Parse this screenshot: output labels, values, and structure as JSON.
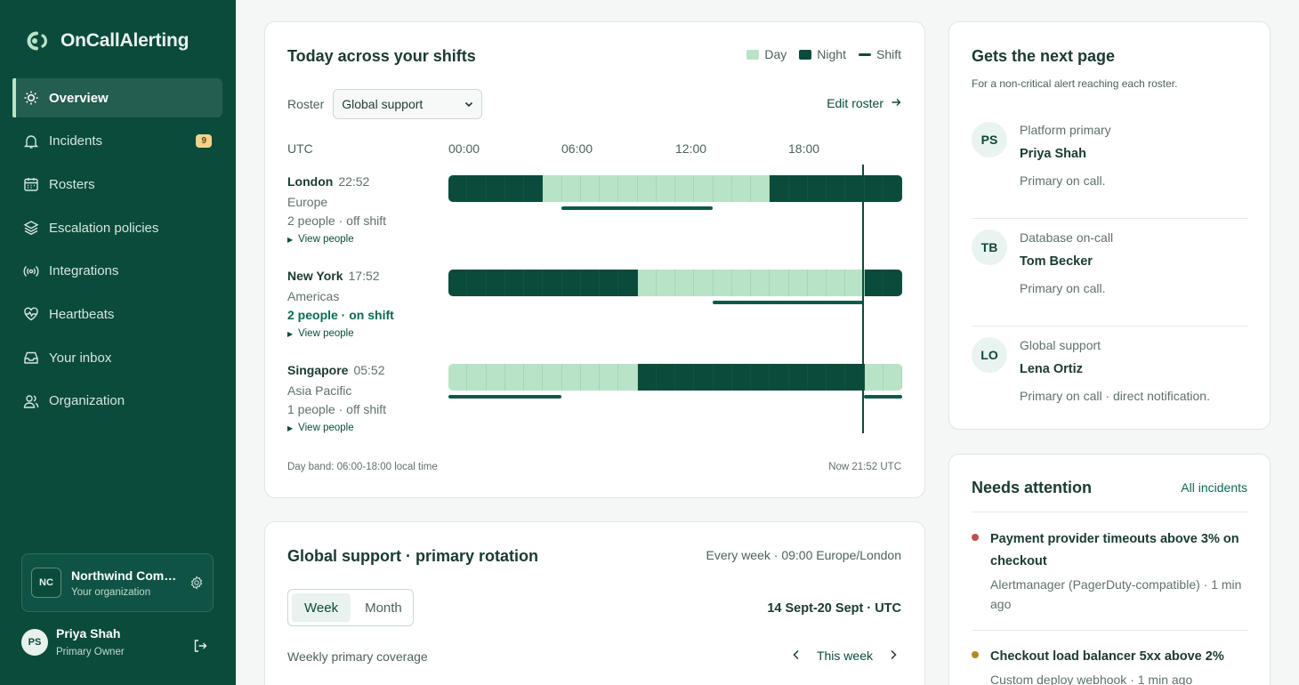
{
  "app": {
    "name": "OnCallAlerting"
  },
  "sidebar": {
    "items": [
      {
        "label": "Overview",
        "icon": "sun-icon",
        "active": true
      },
      {
        "label": "Incidents",
        "icon": "bell-icon",
        "badge": "9"
      },
      {
        "label": "Rosters",
        "icon": "calendar-icon"
      },
      {
        "label": "Escalation policies",
        "icon": "layers-icon"
      },
      {
        "label": "Integrations",
        "icon": "broadcast-icon"
      },
      {
        "label": "Heartbeats",
        "icon": "heart-pulse-icon"
      },
      {
        "label": "Your inbox",
        "icon": "inbox-icon"
      },
      {
        "label": "Organization",
        "icon": "users-icon"
      }
    ],
    "org": {
      "initials": "NC",
      "name": "Northwind Com…",
      "subtitle": "Your organization"
    },
    "user": {
      "initials": "PS",
      "name": "Priya Shah",
      "role": "Primary Owner"
    }
  },
  "shifts": {
    "title": "Today across your shifts",
    "legend": {
      "day": "Day",
      "night": "Night",
      "shift": "Shift"
    },
    "roster_label": "Roster",
    "roster_value": "Global support",
    "edit_roster": "Edit roster",
    "utc_label": "UTC",
    "ticks": [
      "00:00",
      "06:00",
      "12:00",
      "18:00"
    ],
    "zones": [
      {
        "city": "London",
        "time": "22:52",
        "region": "Europe",
        "people": "2 people · off shift",
        "on_shift": false,
        "view": "View people"
      },
      {
        "city": "New York",
        "time": "17:52",
        "region": "Americas",
        "people": "2 people · on shift",
        "on_shift": true,
        "view": "View people"
      },
      {
        "city": "Singapore",
        "time": "05:52",
        "region": "Asia Pacific",
        "people": "1 people · off shift",
        "on_shift": false,
        "view": "View people"
      }
    ],
    "footer_left": "Day band: 06:00-18:00 local time",
    "footer_right": "Now 21:52 UTC",
    "colors": {
      "day": "#b9e3c7",
      "night": "#0b4b3c"
    }
  },
  "next_page": {
    "title": "Gets the next page",
    "subtitle": "For a non-critical alert reaching each roster.",
    "items": [
      {
        "initials": "PS",
        "roster": "Platform primary",
        "name": "Priya Shah",
        "status": "Primary on call."
      },
      {
        "initials": "TB",
        "roster": "Database on-call",
        "name": "Tom Becker",
        "status": "Primary on call."
      },
      {
        "initials": "LO",
        "roster": "Global support",
        "name": "Lena Ortiz",
        "status": "Primary on call · direct notification."
      }
    ]
  },
  "attention": {
    "title": "Needs attention",
    "all_link": "All incidents",
    "items": [
      {
        "name": "Payment provider timeouts above 3% on checkout",
        "meta": "Alertmanager (PagerDuty-compatible) · 1 min ago",
        "color": "#c0504d"
      },
      {
        "name": "Checkout load balancer 5xx above 2%",
        "meta": "Custom deploy webhook · 1 min ago",
        "color": "#b8862b"
      }
    ]
  },
  "rotation": {
    "title": "Global support · primary rotation",
    "schedule": "Every week · 09:00 Europe/London",
    "tabs": [
      "Week",
      "Month"
    ],
    "range": "14 Sept-20 Sept · UTC",
    "coverage_label": "Weekly primary coverage",
    "this_week": "This week"
  }
}
